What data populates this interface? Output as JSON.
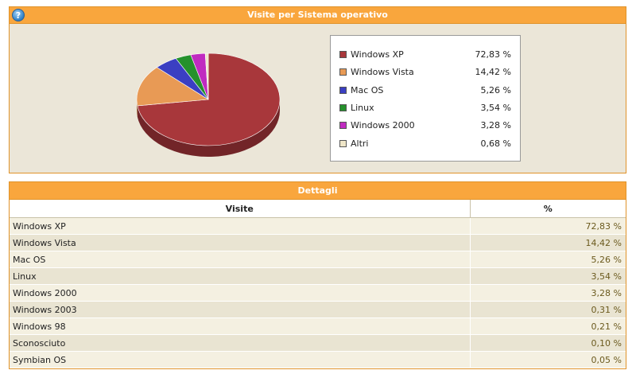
{
  "top_panel": {
    "title": "Visite per Sistema operativo",
    "help_icon": "question-mark-icon",
    "help_glyph": "?"
  },
  "chart_data": {
    "type": "pie",
    "title": "Visite per Sistema operativo",
    "legend_position": "right",
    "unit": "%",
    "slices": [
      {
        "label": "Windows XP",
        "value": 72.83,
        "display": "72,83 %",
        "color": "#a8373b"
      },
      {
        "label": "Windows Vista",
        "value": 14.42,
        "display": "14,42 %",
        "color": "#e89a55"
      },
      {
        "label": "Mac OS",
        "value": 5.26,
        "display": "5,26 %",
        "color": "#3b3fc2"
      },
      {
        "label": "Linux",
        "value": 3.54,
        "display": "3,54 %",
        "color": "#25912c"
      },
      {
        "label": "Windows 2000",
        "value": 3.28,
        "display": "3,28 %",
        "color": "#c02bc0"
      },
      {
        "label": "Altri",
        "value": 0.68,
        "display": "0,68 %",
        "color": "#efe6c8"
      }
    ]
  },
  "details": {
    "title": "Dettagli",
    "columns": [
      "Visite",
      "%"
    ],
    "rows": [
      {
        "name": "Windows XP",
        "pct": "72,83 %"
      },
      {
        "name": "Windows Vista",
        "pct": "14,42 %"
      },
      {
        "name": "Mac OS",
        "pct": "5,26 %"
      },
      {
        "name": "Linux",
        "pct": "3,54 %"
      },
      {
        "name": "Windows 2000",
        "pct": "3,28 %"
      },
      {
        "name": "Windows 2003",
        "pct": "0,31 %"
      },
      {
        "name": "Windows 98",
        "pct": "0,21 %"
      },
      {
        "name": "Sconosciuto",
        "pct": "0,10 %"
      },
      {
        "name": "Symbian OS",
        "pct": "0,05 %"
      }
    ]
  }
}
